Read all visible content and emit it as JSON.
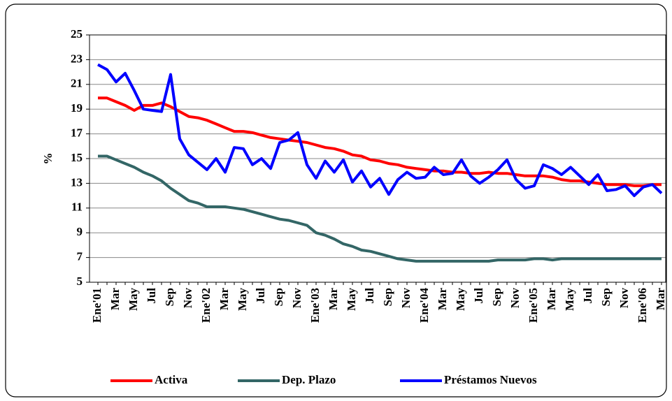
{
  "chart_data": {
    "type": "line",
    "y_label": "%",
    "categories": [
      "Ene'01",
      null,
      "Mar",
      null,
      "May",
      null,
      "Jul",
      null,
      "Sep",
      null,
      "Nov",
      null,
      "Ene'02",
      null,
      "Mar",
      null,
      "May",
      null,
      "Jul",
      null,
      "Sep",
      null,
      "Nov",
      null,
      "Ene'03",
      null,
      "Mar",
      null,
      "May",
      null,
      "Jul",
      null,
      "Sep",
      null,
      "Nov",
      null,
      "Ene'04",
      null,
      "Mar",
      null,
      "May",
      null,
      "Jul",
      null,
      "Sep",
      null,
      "Nov",
      null,
      "Ene'05",
      null,
      "Mar",
      null,
      "May",
      null,
      "Jul",
      null,
      "Sep",
      null,
      "Nov",
      null,
      "Ene'06",
      null,
      "Mar"
    ],
    "series": [
      {
        "name": "Activa",
        "color": "#ff0000",
        "values": [
          19.9,
          19.9,
          19.6,
          19.3,
          18.9,
          19.3,
          19.3,
          19.5,
          19.2,
          18.8,
          18.4,
          18.3,
          18.1,
          17.8,
          17.5,
          17.2,
          17.2,
          17.1,
          16.9,
          16.7,
          16.6,
          16.5,
          16.4,
          16.3,
          16.1,
          15.9,
          15.8,
          15.6,
          15.3,
          15.2,
          14.9,
          14.8,
          14.6,
          14.5,
          14.3,
          14.2,
          14.1,
          14.0,
          14.0,
          13.9,
          13.9,
          13.8,
          13.8,
          13.9,
          13.8,
          13.8,
          13.7,
          13.6,
          13.6,
          13.6,
          13.5,
          13.3,
          13.2,
          13.2,
          13.1,
          13.0,
          12.9,
          12.9,
          12.9,
          12.8,
          12.8,
          12.9,
          12.9
        ]
      },
      {
        "name": "Dep. Plazo",
        "color": "#336666",
        "values": [
          15.2,
          15.2,
          14.9,
          14.6,
          14.3,
          13.9,
          13.6,
          13.2,
          12.6,
          12.1,
          11.6,
          11.4,
          11.1,
          11.1,
          11.1,
          11.0,
          10.9,
          10.7,
          10.5,
          10.3,
          10.1,
          10.0,
          9.8,
          9.6,
          9.0,
          8.8,
          8.5,
          8.1,
          7.9,
          7.6,
          7.5,
          7.3,
          7.1,
          6.9,
          6.8,
          6.7,
          6.7,
          6.7,
          6.7,
          6.7,
          6.7,
          6.7,
          6.7,
          6.7,
          6.8,
          6.8,
          6.8,
          6.8,
          6.9,
          6.9,
          6.8,
          6.9,
          6.9,
          6.9,
          6.9,
          6.9,
          6.9,
          6.9,
          6.9,
          6.9,
          6.9,
          6.9,
          6.9
        ]
      },
      {
        "name": "Préstamos Nuevos",
        "color": "#0000ff",
        "values": [
          22.6,
          22.2,
          21.2,
          21.9,
          20.5,
          19.0,
          18.9,
          18.8,
          21.8,
          16.6,
          15.3,
          14.7,
          14.1,
          15.0,
          13.9,
          15.9,
          15.8,
          14.5,
          15.0,
          14.2,
          16.3,
          16.5,
          17.1,
          14.5,
          13.4,
          14.8,
          13.9,
          14.9,
          13.1,
          14.0,
          12.7,
          13.4,
          12.1,
          13.3,
          13.9,
          13.4,
          13.5,
          14.3,
          13.7,
          13.8,
          14.9,
          13.6,
          13.0,
          13.5,
          14.1,
          14.9,
          13.3,
          12.6,
          12.8,
          14.5,
          14.2,
          13.7,
          14.3,
          13.6,
          12.9,
          13.7,
          12.4,
          12.5,
          12.8,
          12.0,
          12.7,
          12.9,
          12.2
        ]
      }
    ],
    "ylim": [
      5,
      25
    ],
    "yticks": [
      5,
      7,
      9,
      11,
      13,
      15,
      17,
      19,
      21,
      23,
      25
    ],
    "grid": true,
    "legend": "bottom"
  }
}
